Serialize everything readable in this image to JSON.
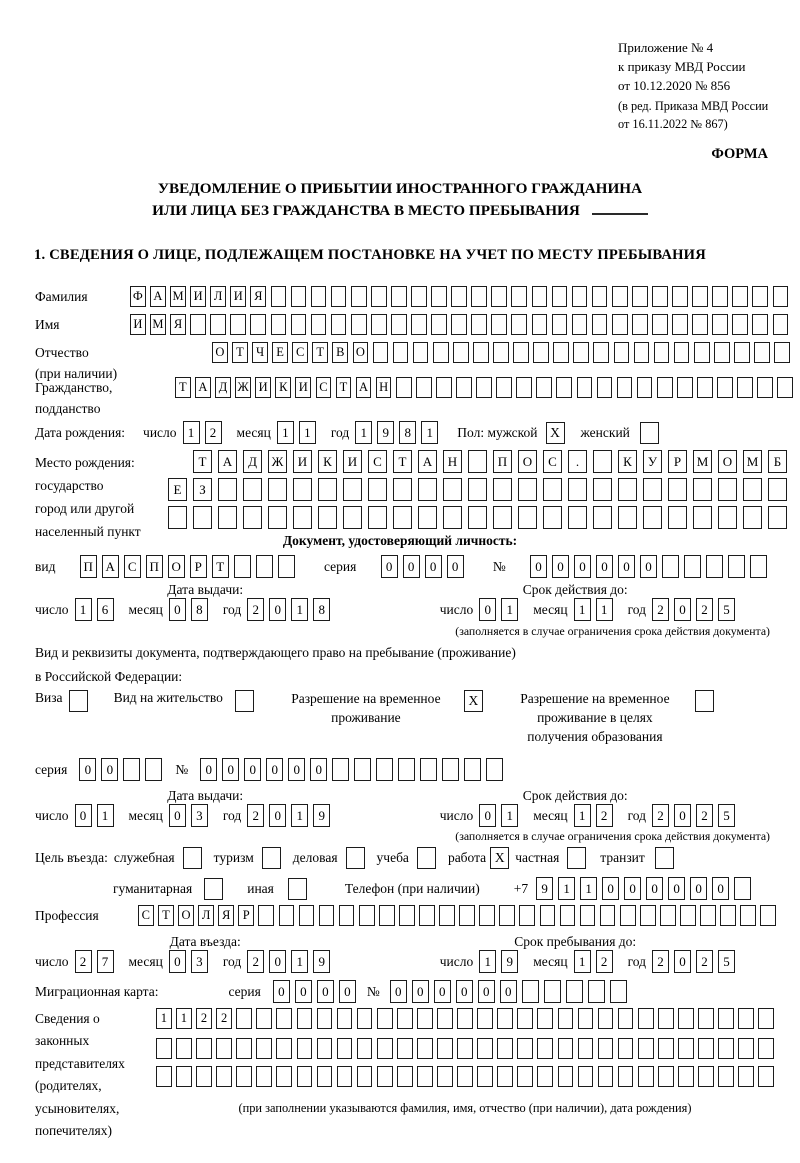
{
  "labels": {
    "day": "число",
    "month": "месяц",
    "year": "год"
  },
  "page": {
    "appendix": [
      "Приложение № 4",
      "к приказу МВД России",
      "от 10.12.2020 № 856"
    ],
    "edition": [
      "(в ред. Приказа МВД России",
      "от 16.11.2022 № 867)"
    ],
    "form_label": "ФОРМА",
    "title1": "УВЕДОМЛЕНИЕ О ПРИБЫТИИ ИНОСТРАННОГО ГРАЖДАНИНА",
    "title2": "ИЛИ ЛИЦА БЕЗ ГРАЖДАНСТВА В МЕСТО ПРЕБЫВАНИЯ",
    "section1": "1. СВЕДЕНИЯ О ЛИЦЕ, ПОДЛЕЖАЩЕМ ПОСТАНОВКЕ НА УЧЕТ ПО МЕСТУ ПРЕБЫВАНИЯ"
  },
  "surname": {
    "label": "Фамилия",
    "boxes": {
      "value": "ФАМИЛИЯ",
      "cells": 33
    }
  },
  "firstname": {
    "label": "Имя",
    "boxes": {
      "value": "ИМЯ",
      "cells": 33
    }
  },
  "patronymic": {
    "label": "Отчество",
    "note": "(при наличии)",
    "boxes": {
      "value": "ОТЧЕСТВО",
      "cells": 29
    }
  },
  "citizenship": {
    "label": "Гражданство,",
    "label2": "подданство",
    "boxes": {
      "value": "ТАДЖИКИСТАН",
      "cells": 31
    }
  },
  "birth": {
    "label": "Дата рождения:",
    "day": {
      "value": "12",
      "cells": 2
    },
    "month": {
      "value": "11",
      "cells": 2
    },
    "year": {
      "value": "1981",
      "cells": 4
    },
    "sex_label": "Пол: мужской",
    "male_checked": "X",
    "female_label": "женский",
    "female_checked": ""
  },
  "birthplace": {
    "label": "Место рождения:",
    "sub1": "государство",
    "sub2": "город или другой",
    "sub3": "населенный пункт",
    "row1": {
      "value": "ТАДЖИКИСТАН ПОС. КУРМОМБ",
      "cells": 24
    },
    "row2": {
      "value": "ЕЗ",
      "cells": 25
    },
    "row3": {
      "value": "",
      "cells": 25
    }
  },
  "iddoc": {
    "title": "Документ, удостоверяющий личность:",
    "kind_label": "вид",
    "kind": {
      "value": "ПАСПОРТ",
      "cells": 10
    },
    "series_label": "серия",
    "series": {
      "value": "0000",
      "cells": 4
    },
    "num_label": "№",
    "number": {
      "value": "000000",
      "cells": 11
    },
    "issue_title": "Дата выдачи:",
    "valid_title": "Срок действия до:",
    "issue": {
      "day": {
        "value": "16",
        "cells": 2
      },
      "month": {
        "value": "08",
        "cells": 2
      },
      "year": {
        "value": "2018",
        "cells": 4
      }
    },
    "valid": {
      "day": {
        "value": "01",
        "cells": 2
      },
      "month": {
        "value": "11",
        "cells": 2
      },
      "year": {
        "value": "2025",
        "cells": 4
      }
    },
    "note": "(заполняется в случае ограничения срока действия документа)"
  },
  "staydoc": {
    "intro1": "Вид и реквизиты документа, подтверждающего право на пребывание (проживание)",
    "intro2": "в Российской Федерации:",
    "visa_label": "Виза",
    "visa_checked": "",
    "residence_label": "Вид на жительство",
    "residence_checked": "",
    "temp_label": "Разрешение на временное\nпроживание",
    "temp_checked": "X",
    "edu_label": "Разрешение на временное\nпроживание в целях\nполучения образования",
    "edu_checked": "",
    "series_label": "серия",
    "series": {
      "value": "00",
      "cells": 4
    },
    "num_label": "№",
    "number": {
      "value": "000000",
      "cells": 14
    },
    "issue_title": "Дата выдачи:",
    "valid_title": "Срок действия до:",
    "issue": {
      "day": {
        "value": "01",
        "cells": 2
      },
      "month": {
        "value": "03",
        "cells": 2
      },
      "year": {
        "value": "2019",
        "cells": 4
      }
    },
    "valid": {
      "day": {
        "value": "01",
        "cells": 2
      },
      "month": {
        "value": "12",
        "cells": 2
      },
      "year": {
        "value": "2025",
        "cells": 4
      }
    },
    "note": "(заполняется в случае ограничения срока действия документа)"
  },
  "purpose": {
    "label": "Цель въезда:",
    "options": [
      {
        "label": "служебная",
        "checked": ""
      },
      {
        "label": "туризм",
        "checked": ""
      },
      {
        "label": "деловая",
        "checked": ""
      },
      {
        "label": "учеба",
        "checked": ""
      },
      {
        "label": "работа",
        "checked": "X"
      },
      {
        "label": "частная",
        "checked": ""
      },
      {
        "label": "транзит",
        "checked": ""
      },
      {
        "label": "гуманитарная",
        "checked": ""
      },
      {
        "label": "иная",
        "checked": ""
      }
    ]
  },
  "phone": {
    "label": "Телефон (при наличии)",
    "prefix": "+7",
    "number": {
      "value": "911000000",
      "cells": 10
    }
  },
  "profession": {
    "label": "Профессия",
    "boxes": {
      "value": "СТОЛЯР",
      "cells": 32
    }
  },
  "entry": {
    "entry_title": "Дата въезда:",
    "stay_title": "Срок пребывания до:",
    "entry_date": {
      "day": {
        "value": "27",
        "cells": 2
      },
      "month": {
        "value": "03",
        "cells": 2
      },
      "year": {
        "value": "2019",
        "cells": 4
      }
    },
    "stay_until": {
      "day": {
        "value": "19",
        "cells": 2
      },
      "month": {
        "value": "12",
        "cells": 2
      },
      "year": {
        "value": "2025",
        "cells": 4
      }
    }
  },
  "migcard": {
    "label": "Миграционная карта:",
    "series_label": "серия",
    "series": {
      "value": "0000",
      "cells": 4
    },
    "num_label": "№",
    "number": {
      "value": "000000",
      "cells": 11
    }
  },
  "reps": {
    "label": "Сведения о\nзаконных\nпредставителях\n(родителях,\nусыновителях,\nпопечителях)",
    "row1": {
      "value": "1122",
      "cells": 31
    },
    "row2": {
      "value": "",
      "cells": 31
    },
    "row3": {
      "value": "",
      "cells": 31
    },
    "note": "(при заполнении указываются фамилия, имя, отчество (при наличии), дата рождения)"
  }
}
